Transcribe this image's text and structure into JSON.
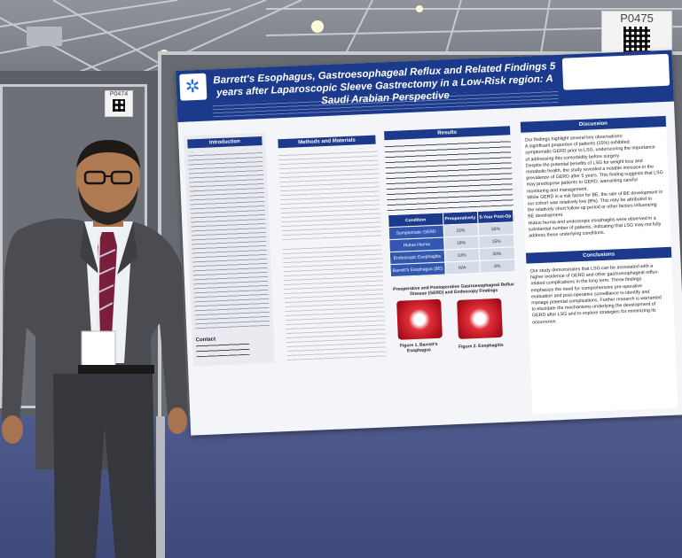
{
  "booth": {
    "board_id_main": "P0475",
    "board_id_left": "P0474"
  },
  "poster": {
    "title": "Barrett's Esophagus, Gastroesophageal Reflux and Related Findings 5 years after Laparoscopic Sleeve Gastrectomy in a Low-Risk region: A Saudi Arabian Perspective",
    "sections": {
      "introduction": "Introduction",
      "methods": "Methods and Materials",
      "results": "Results",
      "discussion": "Discussion",
      "conclusions": "Conclusions",
      "contact": "Contact"
    },
    "results_table": {
      "headers": [
        "Condition",
        "Preoperatively",
        "5-Year Post-Op"
      ],
      "rows": [
        [
          "Symptomatic GERD",
          "15%",
          "58%"
        ],
        [
          "Hiatus Hernia",
          "18%",
          "15%"
        ],
        [
          "Endoscopic Esophagitis",
          "10%",
          "30%"
        ],
        [
          "Barrett's Esophagus (BE)",
          "N/A",
          "8%"
        ]
      ]
    },
    "figure_title": "Preoperative and Postoperative Gastroesophageal Reflux Disease (GERD) and Endoscopy Findings",
    "figure_captions": [
      "Figure 1. Barrett's Esophagus",
      "Figure 2. Esophagitis"
    ],
    "discussion_lines": [
      "Our findings highlight several key observations:",
      "A significant proportion of patients (15%) exhibited",
      "symptomatic GERD prior to LSG, underscoring the importance",
      "of addressing this comorbidity before surgery.",
      "Despite the potential benefits of LSG for weight loss and",
      "metabolic health, the study revealed a notable increase in the",
      "prevalence of GERD after 5 years. This finding suggests that LSG",
      "may predispose patients to GERD, warranting careful",
      "monitoring and management.",
      "While GERD is a risk factor for BE, the rate of BE development in",
      "our cohort was relatively low (8%). This may be attributed to",
      "the relatively short follow-up period or other factors influencing",
      "BE development.",
      "Hiatus hernia and endoscopic esophagitis were observed in a",
      "substantial number of patients, indicating that LSG may not fully",
      "address these underlying conditions."
    ],
    "conclusion_lines": [
      "Our study demonstrates that LSG can be associated with a",
      "higher incidence of GERD and other gastroesophageal reflux-",
      "related complications in the long term. These findings",
      "emphasize the need for comprehensive pre-operative",
      "evaluation and post-operative surveillance to identify and",
      "manage potential complications. Further research is warranted",
      "to elucidate the mechanisms underlying the development of",
      "GERD after LSG and to explore strategies for minimizing its",
      "occurrence."
    ]
  },
  "colors": {
    "poster_blue": "#1c3a8c",
    "carpet": "#46518a",
    "suit": "#4a4c52"
  }
}
